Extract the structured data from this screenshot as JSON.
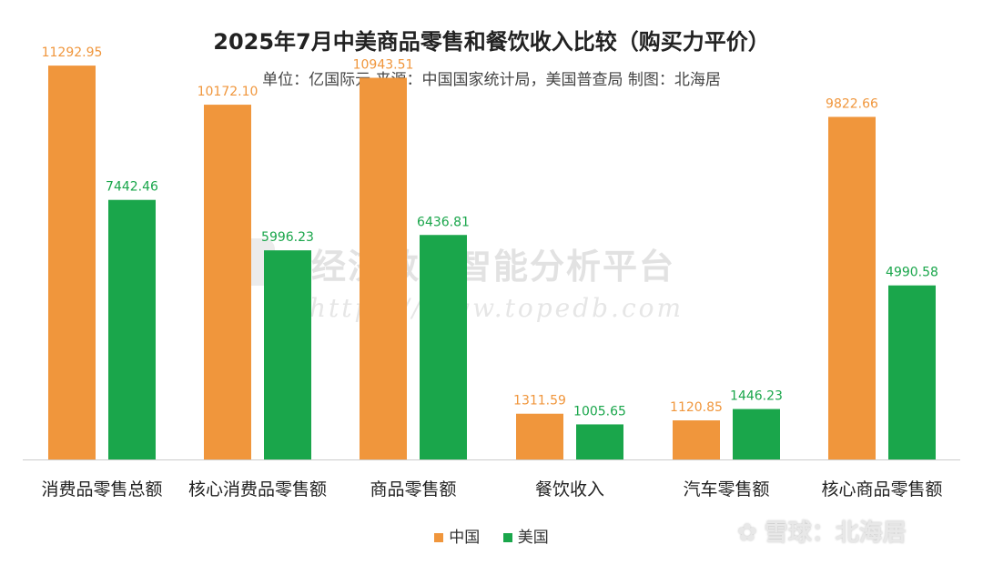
{
  "chart_data": {
    "type": "bar",
    "title": "2025年7月中美商品零售和餐饮收入比较（购买力平价）",
    "subtitle": "单位：亿国际元 来源：中国国家统计局，美国普查局 制图：北海居",
    "categories": [
      "消费品零售总额",
      "核心消费品零售额",
      "商品零售额",
      "餐饮收入",
      "汽车零售额",
      "核心商品零售额"
    ],
    "series": [
      {
        "name": "中国",
        "color": "#f0963c",
        "values": [
          11292.95,
          10172.1,
          10943.51,
          1311.59,
          1120.85,
          9822.66
        ]
      },
      {
        "name": "美国",
        "color": "#1aa64b",
        "values": [
          7442.46,
          5996.23,
          6436.81,
          1005.65,
          1446.23,
          4990.58
        ]
      }
    ],
    "value_labels": [
      [
        "11292.95",
        "10172.10",
        "10943.51",
        "1311.59",
        "1120.85",
        "9822.66"
      ],
      [
        "7442.46",
        "5996.23",
        "6436.81",
        "1005.65",
        "1446.23",
        "4990.58"
      ]
    ],
    "ylim": [
      0,
      12000
    ],
    "grid": false,
    "legend_position": "bottom"
  },
  "watermark": {
    "name": "经济数据智能分析平台",
    "url": "https://www.topedb.com",
    "corner": "雪球：北海居"
  }
}
